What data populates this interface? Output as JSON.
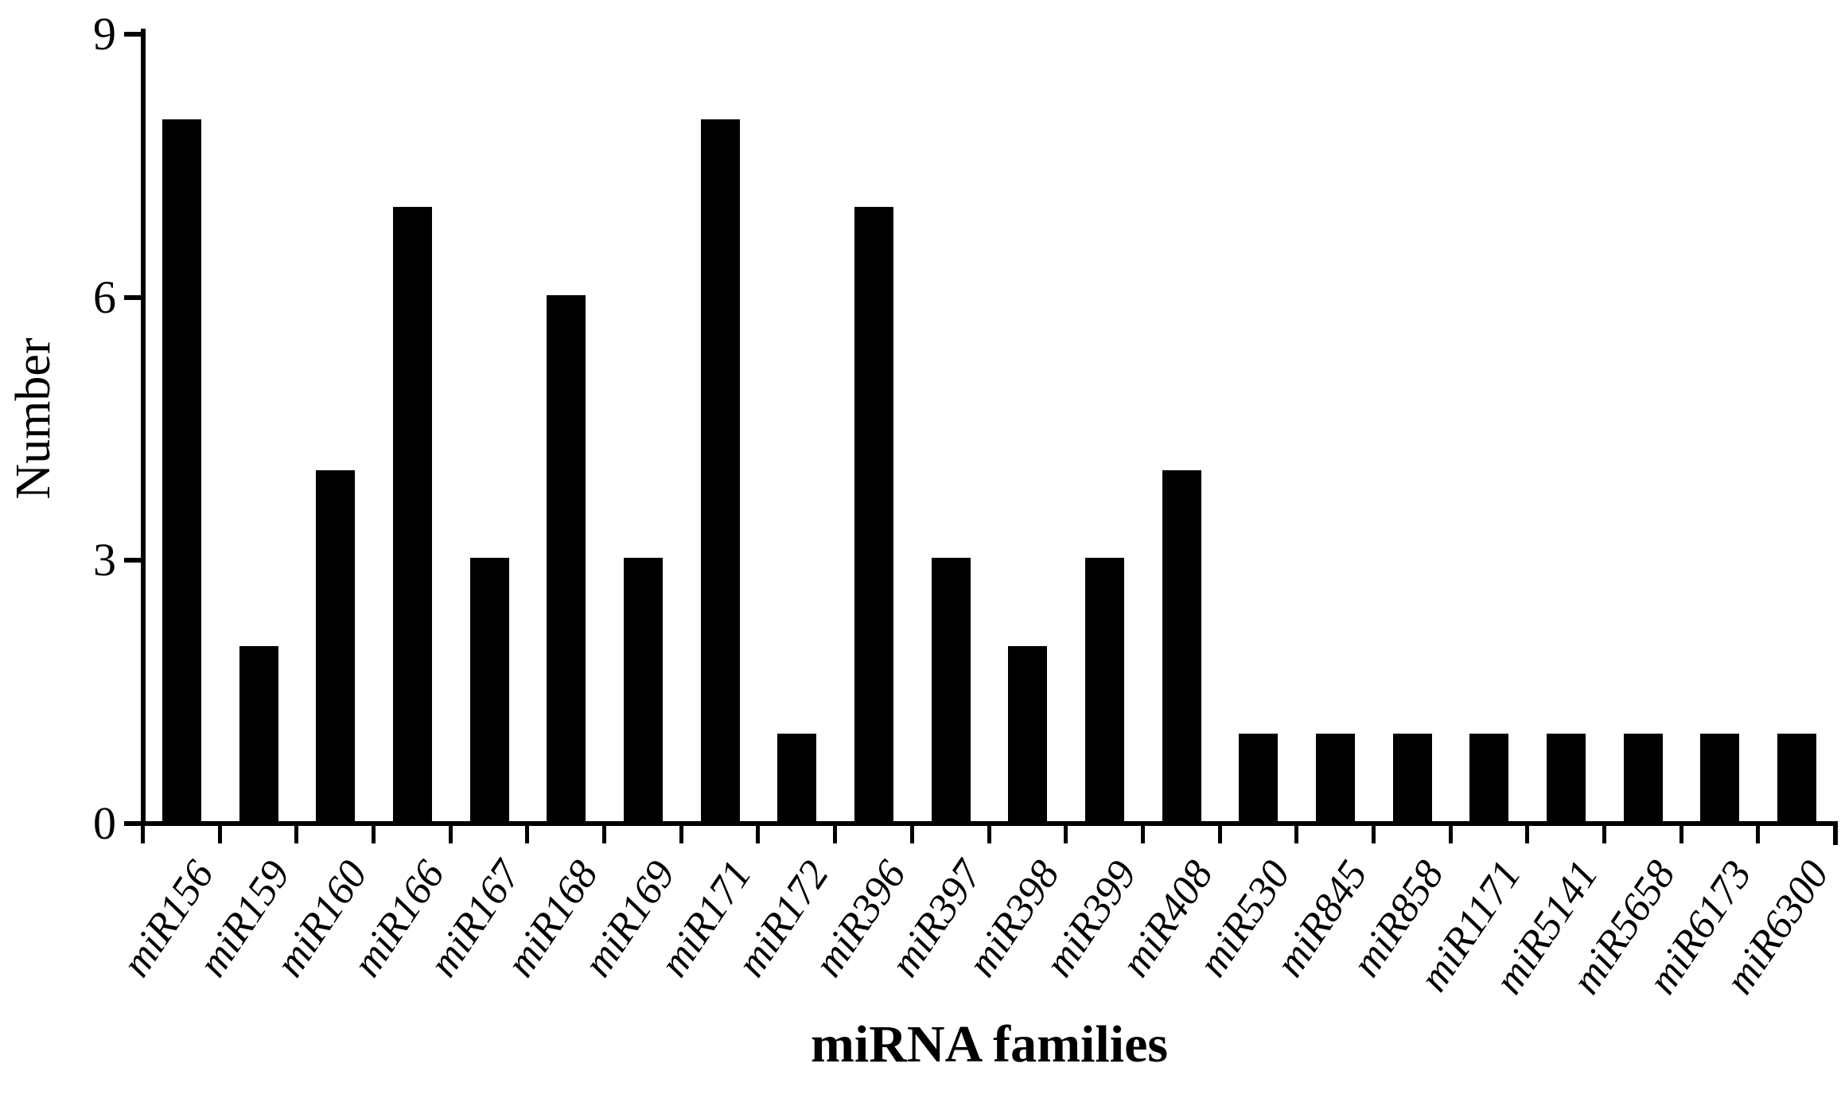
{
  "figure": {
    "background_color": "#ffffff",
    "bar_color": "#000000",
    "axis_color": "#000000"
  },
  "chart_data": {
    "type": "bar",
    "title": "",
    "xlabel": "miRNA families",
    "ylabel": "Number",
    "categories": [
      "miR156",
      "miR159",
      "miR160",
      "miR166",
      "miR167",
      "miR168",
      "miR169",
      "miR171",
      "miR172",
      "miR396",
      "miR397",
      "miR398",
      "miR399",
      "miR408",
      "miR530",
      "miR845",
      "miR858",
      "miR1171",
      "miR5141",
      "miR5658",
      "miR6173",
      "miR6300"
    ],
    "values": [
      8,
      2,
      4,
      7,
      3,
      6,
      3,
      8,
      1,
      7,
      3,
      2,
      3,
      4,
      1,
      1,
      1,
      1,
      1,
      1,
      1,
      1
    ],
    "yticks": [
      0,
      3,
      6,
      9
    ],
    "ylim": [
      0,
      9
    ],
    "grid": false,
    "legend": null,
    "bar_orientation": "vertical",
    "x_label_rotation_deg": -56
  }
}
